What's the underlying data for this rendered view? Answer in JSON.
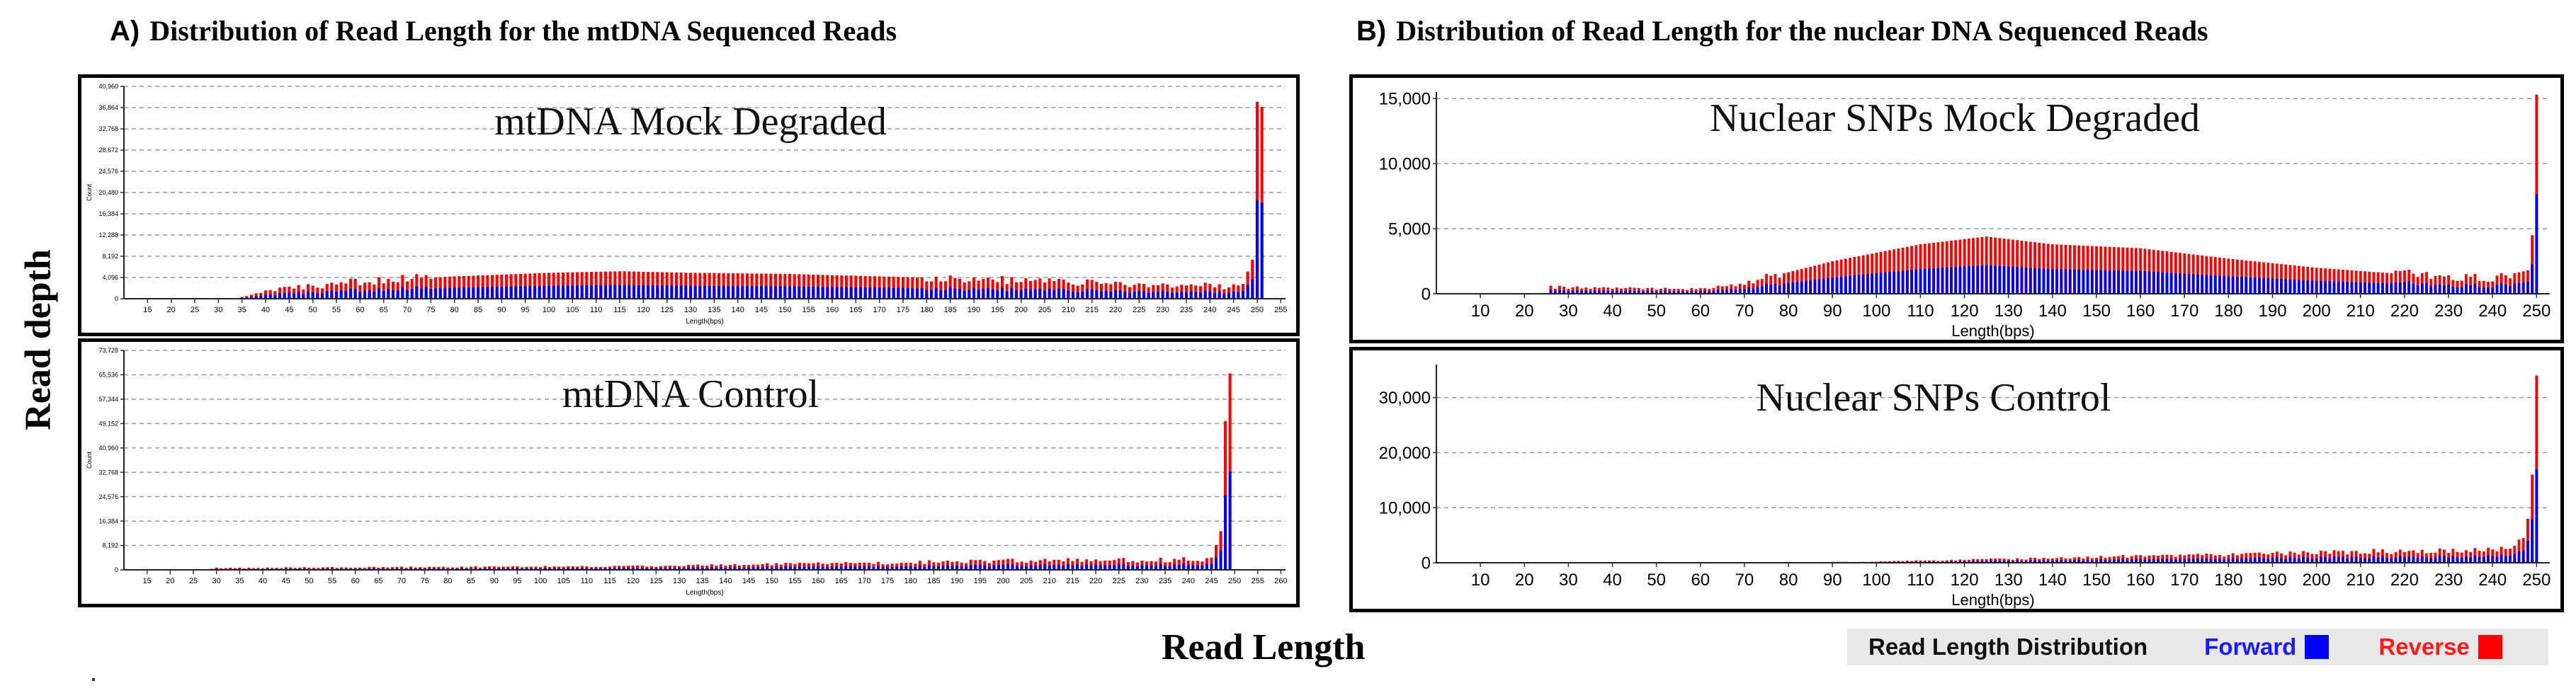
{
  "titles": {
    "left_tag": "A)",
    "left": "Distribution  of Read Length for the mtDNA Sequenced Reads",
    "right_tag": "B)",
    "right": "Distribution  of Read Length for the nuclear DNA Sequenced Reads"
  },
  "axis_labels": {
    "y": "Read depth",
    "x": "Read Length"
  },
  "legend": {
    "title": "Read Length Distribution",
    "forward": "Forward",
    "reverse": "Reverse"
  },
  "colors": {
    "forward": "#0000ff",
    "reverse": "#ff0000",
    "grid": "#9a9a9a",
    "axis": "#333333"
  },
  "chart_data": [
    {
      "id": "mt-mock",
      "type": "bar",
      "title": "mtDNA Mock Degraded",
      "style": "small",
      "xlabel": "Length(bps)",
      "ylabel": "Count",
      "xlim": [
        10,
        256
      ],
      "xticks_text": [
        "15",
        "20",
        "25",
        "30",
        "35",
        "40",
        "45",
        "50",
        "55",
        "60",
        "65",
        "70",
        "75",
        "80",
        "85",
        "90",
        "95",
        "100",
        "105",
        "110",
        "115",
        "120",
        "125",
        "130",
        "135",
        "140",
        "145",
        "150",
        "155",
        "160",
        "165",
        "170",
        "175",
        "180",
        "185",
        "190",
        "195",
        "200",
        "205",
        "210",
        "215",
        "220",
        "225",
        "230",
        "235",
        "240",
        "245",
        "250",
        "255"
      ],
      "ylim": [
        0,
        40960
      ],
      "yticks_text": [
        "0",
        "4,096",
        "8,192",
        "12,288",
        "16,384",
        "20,480",
        "24,576",
        "28,672",
        "32,768",
        "36,864",
        "40,960"
      ],
      "profile": [
        [
          10,
          0
        ],
        [
          33,
          0
        ],
        [
          36,
          500
        ],
        [
          40,
          1500
        ],
        [
          60,
          3300
        ],
        [
          80,
          4300
        ],
        [
          100,
          5000
        ],
        [
          115,
          5300
        ],
        [
          130,
          5000
        ],
        [
          150,
          4800
        ],
        [
          170,
          4300
        ],
        [
          190,
          3800
        ],
        [
          210,
          3200
        ],
        [
          230,
          2600
        ],
        [
          245,
          2400
        ],
        [
          247,
          3000
        ],
        [
          249,
          7500
        ],
        [
          250,
          38000
        ],
        [
          251,
          37000
        ],
        [
          252,
          0
        ]
      ],
      "forward_ratio": 0.5
    },
    {
      "id": "mt-ctrl",
      "type": "bar",
      "title": "mtDNA Control",
      "style": "small",
      "xlabel": "Length(bps)",
      "ylabel": "Count",
      "xlim": [
        10,
        261
      ],
      "xticks_text": [
        "15",
        "20",
        "25",
        "30",
        "35",
        "40",
        "45",
        "50",
        "55",
        "60",
        "65",
        "70",
        "75",
        "80",
        "85",
        "90",
        "95",
        "100",
        "105",
        "110",
        "115",
        "120",
        "125",
        "130",
        "135",
        "140",
        "145",
        "150",
        "155",
        "160",
        "165",
        "170",
        "175",
        "180",
        "185",
        "190",
        "195",
        "200",
        "205",
        "210",
        "215",
        "220",
        "225",
        "230",
        "235",
        "240",
        "245",
        "250",
        "255",
        "260"
      ],
      "ylim": [
        0,
        73728
      ],
      "yticks_text": [
        "0",
        "8,192",
        "16,384",
        "24,576",
        "32,768",
        "40,960",
        "49,152",
        "57,344",
        "65,536",
        "73,728"
      ],
      "profile": [
        [
          10,
          0
        ],
        [
          28,
          0
        ],
        [
          30,
          600
        ],
        [
          120,
          1200
        ],
        [
          170,
          2300
        ],
        [
          200,
          3000
        ],
        [
          240,
          3400
        ],
        [
          245,
          3600
        ],
        [
          247,
          13000
        ],
        [
          248,
          50000
        ],
        [
          249,
          66000
        ],
        [
          250,
          0
        ]
      ],
      "forward_ratio": 0.5
    },
    {
      "id": "nu-mock",
      "type": "bar",
      "title": "Nuclear SNPs Mock Degraded",
      "style": "large",
      "xlabel": "Length(bps)",
      "xlim": [
        0,
        253
      ],
      "xticks_text": [
        "10",
        "20",
        "30",
        "40",
        "50",
        "60",
        "70",
        "80",
        "90",
        "100",
        "110",
        "120",
        "130",
        "140",
        "150",
        "160",
        "170",
        "180",
        "190",
        "200",
        "210",
        "220",
        "230",
        "240",
        "250"
      ],
      "ylim": [
        0,
        15500
      ],
      "yticks_text": [
        "0",
        "5,000",
        "10,000",
        "15,000"
      ],
      "profile": [
        [
          0,
          0
        ],
        [
          25,
          0
        ],
        [
          26,
          500
        ],
        [
          60,
          350
        ],
        [
          70,
          800
        ],
        [
          90,
          2500
        ],
        [
          110,
          3800
        ],
        [
          125,
          4400
        ],
        [
          140,
          3800
        ],
        [
          160,
          3500
        ],
        [
          180,
          2700
        ],
        [
          200,
          2000
        ],
        [
          220,
          1500
        ],
        [
          240,
          1200
        ],
        [
          248,
          1800
        ],
        [
          249,
          4500
        ],
        [
          250,
          15300
        ],
        [
          251,
          0
        ]
      ],
      "forward_ratio": 0.5
    },
    {
      "id": "nu-ctrl",
      "type": "bar",
      "title": "Nuclear SNPs Control",
      "style": "large",
      "xlabel": "Length(bps)",
      "xlim": [
        0,
        253
      ],
      "xticks_text": [
        "10",
        "20",
        "30",
        "40",
        "50",
        "60",
        "70",
        "80",
        "90",
        "100",
        "110",
        "120",
        "130",
        "140",
        "150",
        "160",
        "170",
        "180",
        "190",
        "200",
        "210",
        "220",
        "230",
        "240",
        "250"
      ],
      "ylim": [
        0,
        36000
      ],
      "yticks_text": [
        "0",
        "10,000",
        "20,000",
        "30,000"
      ],
      "profile": [
        [
          0,
          0
        ],
        [
          70,
          0
        ],
        [
          100,
          200
        ],
        [
          130,
          700
        ],
        [
          160,
          1200
        ],
        [
          200,
          1800
        ],
        [
          230,
          2300
        ],
        [
          245,
          2500
        ],
        [
          247,
          4500
        ],
        [
          248,
          8000
        ],
        [
          249,
          16000
        ],
        [
          250,
          34000
        ],
        [
          251,
          0
        ]
      ],
      "forward_ratio": 0.5
    }
  ]
}
